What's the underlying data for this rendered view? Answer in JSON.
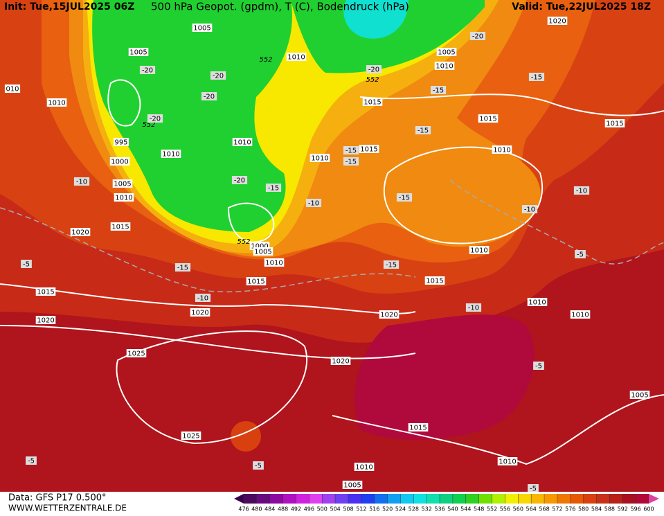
{
  "header": {
    "init": "Init: Tue,15JUL2025 06Z",
    "title": "500 hPa Geopot. (gpdm), T (C), Bodendruck (hPa)",
    "valid": "Valid: Tue,22JUL2025 18Z"
  },
  "footer": {
    "data": "Data: GFS P17 0.500°",
    "site": "WWW.WETTERZENTRALE.DE"
  },
  "map": {
    "isobar_labels": [
      "1005",
      "1020",
      "1005",
      "1010",
      "1005",
      "1010",
      "010",
      "1010",
      "1015",
      "1015",
      "1015",
      "995",
      "1010",
      "1010",
      "1015",
      "1010",
      "1010",
      "1000",
      "1005",
      "1010",
      "1015",
      "1020",
      "1000",
      "1005",
      "1010",
      "1010",
      "1015",
      "1015",
      "1015",
      "1010",
      "1010",
      "1020",
      "1020",
      "1020",
      "1025",
      "1020",
      "1005",
      "1015",
      "1025",
      "1010",
      "1010",
      "1005"
    ],
    "geopotential_labels": [
      "552",
      "552",
      "552",
      "552"
    ],
    "temperature_labels": [
      "-20",
      "-20",
      "-20",
      "-20",
      "-20",
      "-20",
      "-15",
      "-15",
      "-15",
      "-15",
      "-15",
      "-10",
      "-20",
      "-15",
      "-10",
      "-15",
      "-10",
      "-10",
      "-5",
      "-15",
      "-15",
      "-5",
      "-10",
      "-10",
      "-5",
      "-5",
      "-5",
      "-5"
    ]
  },
  "colorbar": {
    "labels": [
      476,
      480,
      484,
      488,
      492,
      496,
      500,
      504,
      508,
      512,
      516,
      520,
      524,
      528,
      532,
      536,
      540,
      544,
      548,
      552,
      556,
      560,
      564,
      568,
      572,
      576,
      580,
      584,
      588,
      592,
      596,
      600
    ]
  }
}
